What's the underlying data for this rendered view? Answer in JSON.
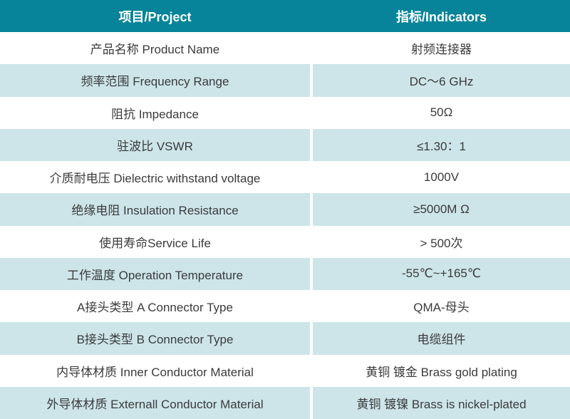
{
  "colors": {
    "header_bg": "#08849a",
    "header_text": "#ffffff",
    "row_alt_bg": "#cde5e9",
    "row_bg": "#ffffff",
    "body_text": "#3b3b3b"
  },
  "table": {
    "header": {
      "project": "项目/Project",
      "indicators": "指标/Indicators"
    },
    "rows": [
      {
        "project": "产品名称 Product Name",
        "indicator": "射频连接器"
      },
      {
        "project": "频率范围 Frequency Range",
        "indicator": "DC～6 GHz"
      },
      {
        "project": "阻抗 Impedance",
        "indicator": "50Ω"
      },
      {
        "project": "驻波比 VSWR",
        "indicator": "≤1.30：1"
      },
      {
        "project": "介质耐电压 Dielectric withstand voltage",
        "indicator": "1000V"
      },
      {
        "project": "绝缘电阻 Insulation Resistance",
        "indicator": "≥5000M Ω"
      },
      {
        "project": "使用寿命Service Life",
        "indicator": "> 500次"
      },
      {
        "project": "工作温度 Operation Temperature",
        "indicator": "-55℃~+165℃"
      },
      {
        "project": "A接头类型 A Connector Type",
        "indicator": "QMA-母头"
      },
      {
        "project": "B接头类型 B Connector Type",
        "indicator": "电缆组件"
      },
      {
        "project": "内导体材质 Inner Conductor Material",
        "indicator": "黄铜 镀金 Brass gold plating"
      },
      {
        "project": "外导体材质 Externall Conductor Material",
        "indicator": "黄铜 镀镍 Brass is nickel-plated"
      }
    ]
  }
}
